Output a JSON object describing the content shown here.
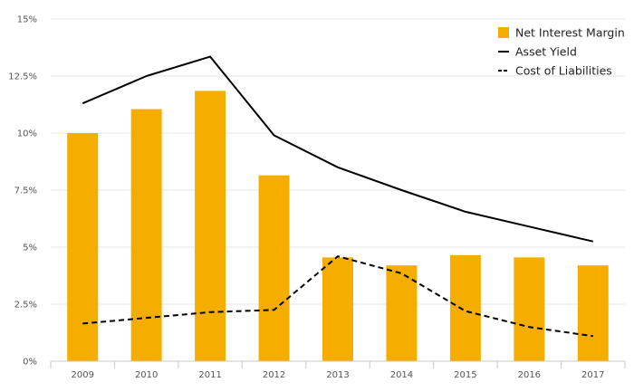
{
  "chart_data": {
    "type": "bar",
    "title": "",
    "xlabel": "",
    "ylabel": "",
    "categories": [
      "2009",
      "2010",
      "2011",
      "2012",
      "2013",
      "2014",
      "2015",
      "2016",
      "2017"
    ],
    "ylim": [
      0,
      15
    ],
    "yticks": [
      0,
      2.5,
      5,
      7.5,
      10,
      12.5,
      15
    ],
    "ytick_labels": [
      "0%",
      "2.5%",
      "5%",
      "7.5%",
      "10%",
      "12.5%",
      "15%"
    ],
    "grid": true,
    "legend_position": "top-right",
    "series": [
      {
        "name": "Net Interest Margin",
        "kind": "bar",
        "color": "#f5ae00",
        "values": [
          10.0,
          11.05,
          11.85,
          8.15,
          4.55,
          4.2,
          4.65,
          4.55,
          4.2
        ]
      },
      {
        "name": "Asset Yield",
        "kind": "line",
        "style": "solid",
        "color": "#000000",
        "values": [
          11.3,
          12.5,
          13.35,
          9.9,
          8.5,
          7.5,
          6.55,
          5.9,
          5.25
        ]
      },
      {
        "name": "Cost of Liabilities",
        "kind": "line",
        "style": "dashed",
        "color": "#000000",
        "values": [
          1.65,
          1.9,
          2.15,
          2.25,
          4.6,
          3.85,
          2.2,
          1.5,
          1.1
        ]
      }
    ]
  }
}
